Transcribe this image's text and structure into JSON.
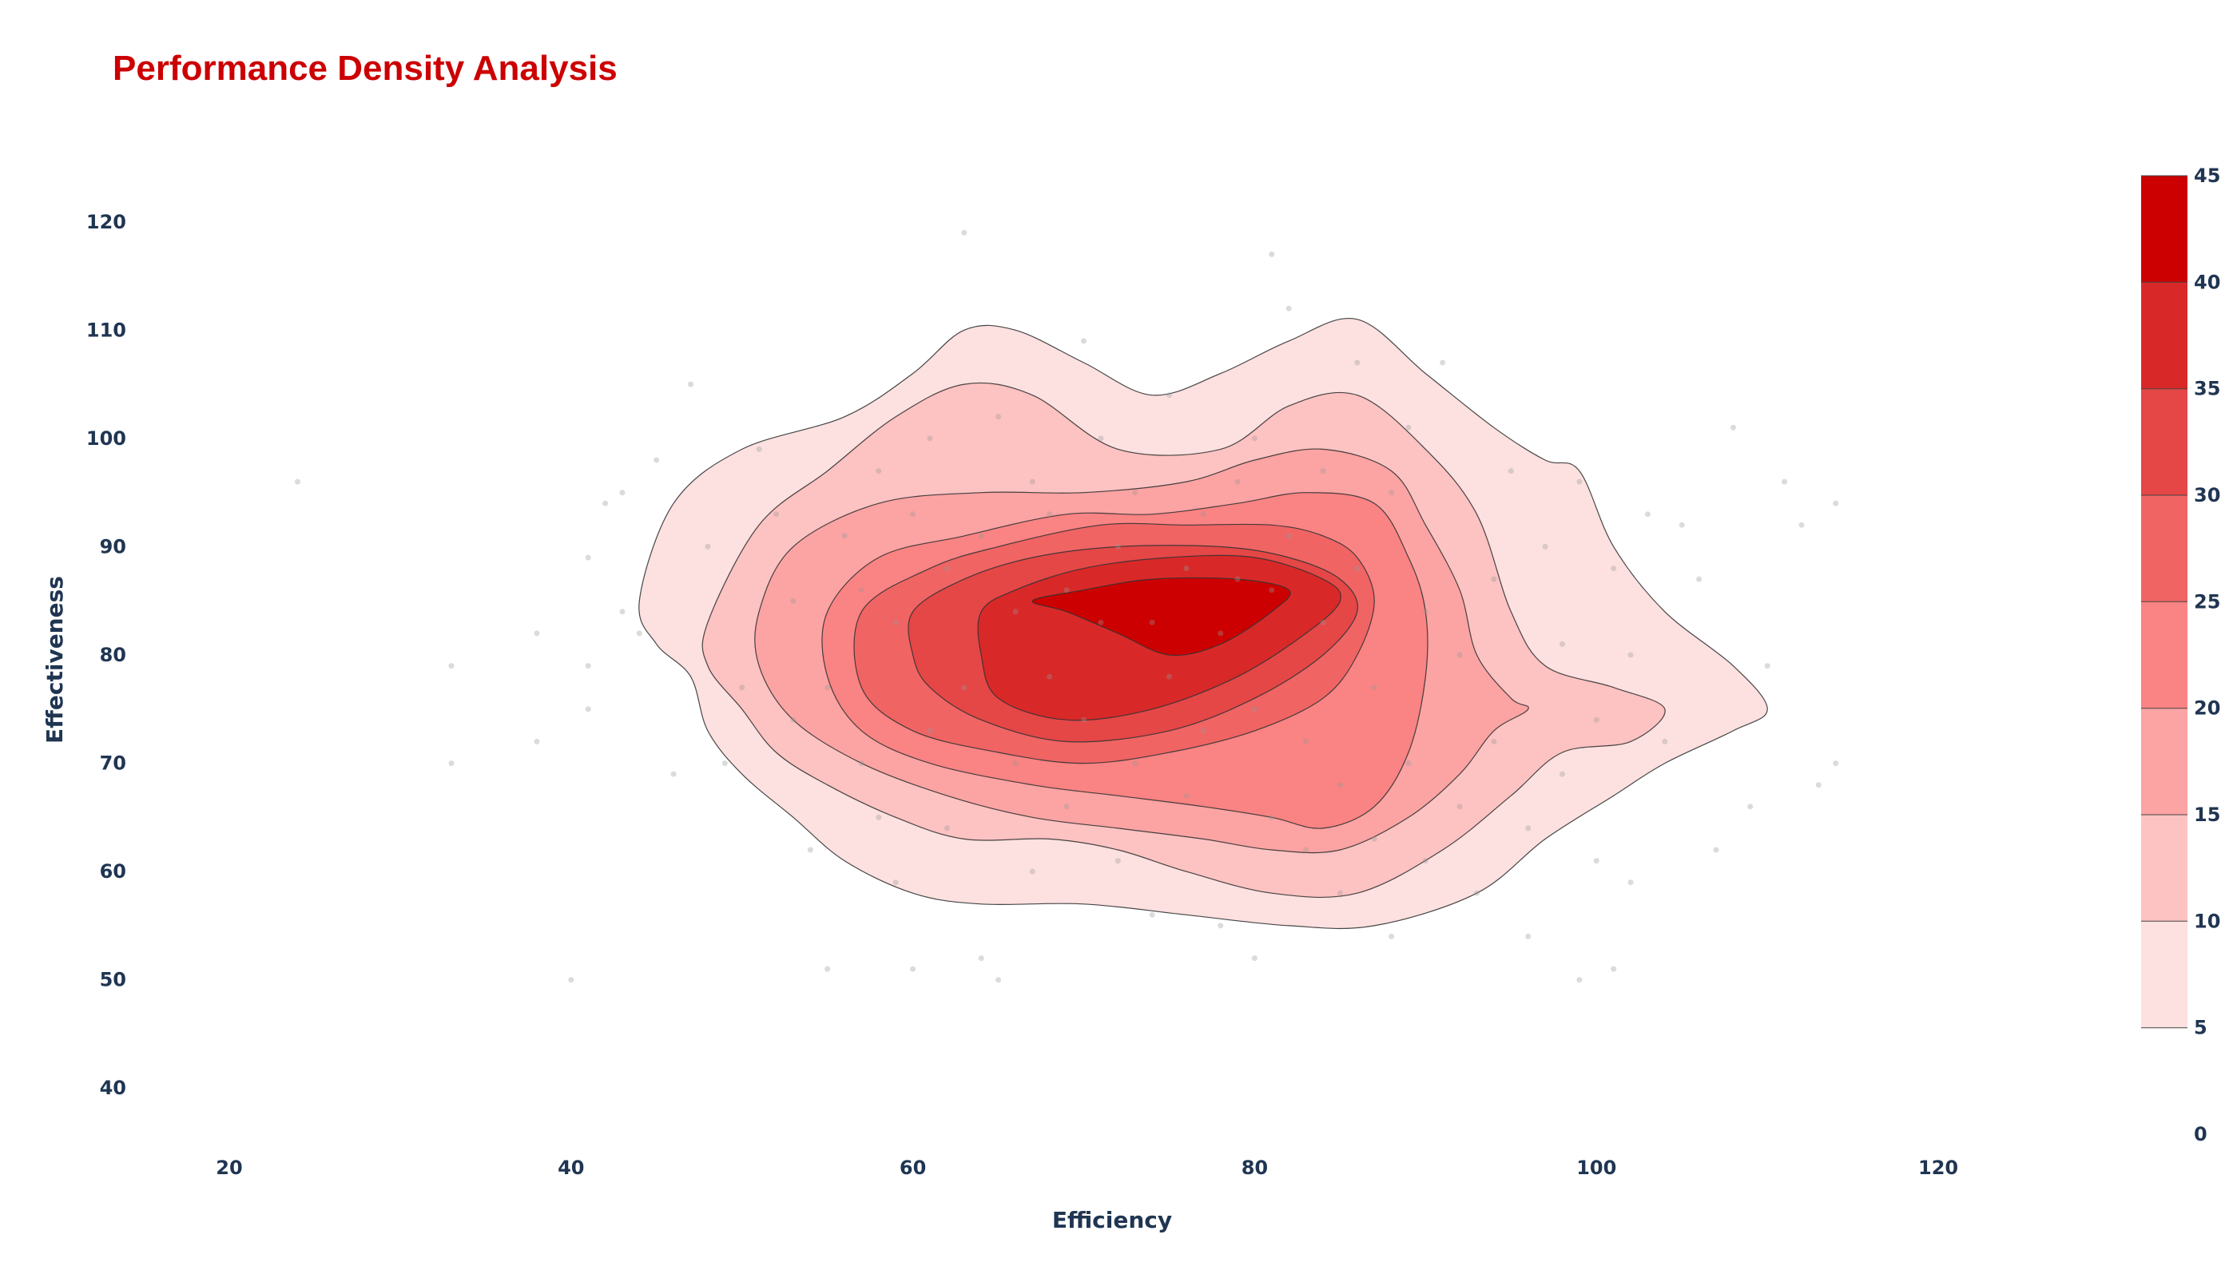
{
  "chart_data": {
    "type": "contour",
    "title": "Performance Density Analysis",
    "xlabel": "Efficiency",
    "ylabel": "Effectiveness",
    "xlim": [
      15,
      130
    ],
    "ylim": [
      35,
      125
    ],
    "x_ticks": [
      20,
      40,
      60,
      80,
      100,
      120
    ],
    "y_ticks": [
      40,
      50,
      60,
      70,
      80,
      90,
      100,
      110,
      120
    ],
    "grid": false,
    "colorscale": {
      "ticks": [
        0,
        5,
        10,
        15,
        20,
        25,
        30,
        35,
        40,
        45
      ],
      "range": [
        0,
        45
      ],
      "colors": [
        "#ffffff",
        "#fde0e0",
        "#fdc2c2",
        "#fca3a3",
        "#fa8383",
        "#f06464",
        "#e54646",
        "#d92828",
        "#cc0000"
      ]
    },
    "contour_levels": [
      {
        "level": 5,
        "points": [
          [
            44,
            85
          ],
          [
            46,
            94
          ],
          [
            50,
            99
          ],
          [
            56,
            102
          ],
          [
            60,
            106
          ],
          [
            63,
            110
          ],
          [
            66,
            110
          ],
          [
            70,
            107
          ],
          [
            74,
            104
          ],
          [
            78,
            106
          ],
          [
            82,
            109
          ],
          [
            86,
            111
          ],
          [
            90,
            106
          ],
          [
            94,
            101
          ],
          [
            97,
            98
          ],
          [
            99,
            97
          ],
          [
            101,
            90
          ],
          [
            104,
            84
          ],
          [
            108,
            79
          ],
          [
            110,
            75
          ],
          [
            108,
            73
          ],
          [
            104,
            70
          ],
          [
            101,
            67
          ],
          [
            97,
            63
          ],
          [
            93,
            58
          ],
          [
            87,
            55
          ],
          [
            82,
            55
          ],
          [
            76,
            56
          ],
          [
            70,
            57
          ],
          [
            64,
            57
          ],
          [
            60,
            58
          ],
          [
            56,
            61
          ],
          [
            53,
            65
          ],
          [
            50,
            69
          ],
          [
            48,
            73
          ],
          [
            47,
            78
          ],
          [
            45,
            81
          ]
        ]
      },
      {
        "level": 10,
        "points": [
          [
            48,
            83
          ],
          [
            51,
            92
          ],
          [
            55,
            97
          ],
          [
            59,
            102
          ],
          [
            63,
            105
          ],
          [
            67,
            104
          ],
          [
            72,
            99
          ],
          [
            78,
            99
          ],
          [
            82,
            103
          ],
          [
            86,
            104
          ],
          [
            90,
            99
          ],
          [
            93,
            93
          ],
          [
            95,
            84
          ],
          [
            97,
            79
          ],
          [
            101,
            77
          ],
          [
            104,
            75
          ],
          [
            102,
            72
          ],
          [
            98,
            71
          ],
          [
            95,
            67
          ],
          [
            91,
            62
          ],
          [
            86,
            58
          ],
          [
            81,
            58
          ],
          [
            76,
            60
          ],
          [
            72,
            62
          ],
          [
            68,
            63
          ],
          [
            63,
            63
          ],
          [
            59,
            65
          ],
          [
            55,
            68
          ],
          [
            52,
            71
          ],
          [
            50,
            75
          ],
          [
            48,
            79
          ]
        ]
      },
      {
        "level": 15,
        "points": [
          [
            51,
            84
          ],
          [
            53,
            90
          ],
          [
            58,
            94
          ],
          [
            64,
            95
          ],
          [
            70,
            95
          ],
          [
            76,
            96
          ],
          [
            80,
            98
          ],
          [
            84,
            99
          ],
          [
            88,
            97
          ],
          [
            90,
            92
          ],
          [
            92,
            86
          ],
          [
            93,
            80
          ],
          [
            95,
            76
          ],
          [
            96,
            75
          ],
          [
            94,
            73
          ],
          [
            92,
            69
          ],
          [
            89,
            65
          ],
          [
            85,
            62
          ],
          [
            81,
            62
          ],
          [
            77,
            63
          ],
          [
            72,
            64
          ],
          [
            67,
            65
          ],
          [
            62,
            67
          ],
          [
            57,
            70
          ],
          [
            53,
            74
          ],
          [
            51,
            79
          ]
        ]
      },
      {
        "level": 20,
        "points": [
          [
            55,
            84
          ],
          [
            58,
            89
          ],
          [
            63,
            91
          ],
          [
            69,
            93
          ],
          [
            74,
            93
          ],
          [
            79,
            94
          ],
          [
            83,
            95
          ],
          [
            87,
            94
          ],
          [
            89,
            89
          ],
          [
            90,
            84
          ],
          [
            90,
            78
          ],
          [
            89,
            71
          ],
          [
            87,
            66
          ],
          [
            84,
            64
          ],
          [
            81,
            65
          ],
          [
            77,
            66
          ],
          [
            72,
            67
          ],
          [
            67,
            68
          ],
          [
            61,
            70
          ],
          [
            57,
            73
          ],
          [
            55,
            78
          ]
        ]
      },
      {
        "level": 25,
        "points": [
          [
            57,
            84
          ],
          [
            61,
            88
          ],
          [
            65,
            90
          ],
          [
            71,
            92
          ],
          [
            76,
            92
          ],
          [
            81,
            92
          ],
          [
            84,
            91
          ],
          [
            86,
            89
          ],
          [
            87,
            85
          ],
          [
            86,
            80
          ],
          [
            84,
            76
          ],
          [
            80,
            73
          ],
          [
            75,
            71
          ],
          [
            70,
            70
          ],
          [
            65,
            71
          ],
          [
            60,
            73
          ],
          [
            57,
            77
          ]
        ]
      },
      {
        "level": 30,
        "points": [
          [
            60,
            84
          ],
          [
            63,
            87
          ],
          [
            67,
            89
          ],
          [
            72,
            90
          ],
          [
            78,
            90
          ],
          [
            82,
            89
          ],
          [
            85,
            87
          ],
          [
            86,
            84
          ],
          [
            84,
            80
          ],
          [
            80,
            76
          ],
          [
            75,
            73
          ],
          [
            69,
            72
          ],
          [
            64,
            74
          ],
          [
            61,
            77
          ],
          [
            60,
            80
          ]
        ]
      },
      {
        "level": 35,
        "points": [
          [
            64,
            84
          ],
          [
            66,
            86
          ],
          [
            70,
            88
          ],
          [
            75,
            89
          ],
          [
            80,
            89
          ],
          [
            84,
            87
          ],
          [
            85,
            85
          ],
          [
            83,
            82
          ],
          [
            79,
            78
          ],
          [
            74,
            75
          ],
          [
            69,
            74
          ],
          [
            65,
            76
          ],
          [
            64,
            80
          ]
        ]
      },
      {
        "level": 40,
        "points": [
          [
            67,
            85
          ],
          [
            70,
            86
          ],
          [
            74,
            87
          ],
          [
            79,
            87
          ],
          [
            82,
            86
          ],
          [
            81,
            84
          ],
          [
            78,
            81
          ],
          [
            75,
            80
          ],
          [
            72,
            82
          ],
          [
            69,
            84
          ]
        ]
      }
    ],
    "scatter": [
      [
        24,
        96
      ],
      [
        33,
        79
      ],
      [
        33,
        70
      ],
      [
        38,
        72
      ],
      [
        38,
        82
      ],
      [
        40,
        50
      ],
      [
        41,
        75
      ],
      [
        41,
        79
      ],
      [
        41,
        89
      ],
      [
        42,
        94
      ],
      [
        43,
        95
      ],
      [
        43,
        84
      ],
      [
        44,
        82
      ],
      [
        45,
        98
      ],
      [
        46,
        69
      ],
      [
        47,
        105
      ],
      [
        48,
        90
      ],
      [
        49,
        70
      ],
      [
        50,
        77
      ],
      [
        51,
        99
      ],
      [
        52,
        93
      ],
      [
        53,
        85
      ],
      [
        53,
        74
      ],
      [
        54,
        62
      ],
      [
        55,
        51
      ],
      [
        55,
        77
      ],
      [
        56,
        91
      ],
      [
        57,
        70
      ],
      [
        57,
        86
      ],
      [
        58,
        97
      ],
      [
        58,
        65
      ],
      [
        59,
        59
      ],
      [
        59,
        83
      ],
      [
        60,
        51
      ],
      [
        60,
        93
      ],
      [
        61,
        73
      ],
      [
        61,
        100
      ],
      [
        62,
        88
      ],
      [
        62,
        64
      ],
      [
        63,
        119
      ],
      [
        63,
        77
      ],
      [
        64,
        52
      ],
      [
        64,
        91
      ],
      [
        65,
        50
      ],
      [
        65,
        102
      ],
      [
        66,
        70
      ],
      [
        66,
        84
      ],
      [
        67,
        60
      ],
      [
        67,
        96
      ],
      [
        68,
        78
      ],
      [
        68,
        93
      ],
      [
        69,
        66
      ],
      [
        69,
        86
      ],
      [
        70,
        109
      ],
      [
        70,
        74
      ],
      [
        71,
        100
      ],
      [
        71,
        83
      ],
      [
        72,
        61
      ],
      [
        72,
        90
      ],
      [
        73,
        70
      ],
      [
        73,
        95
      ],
      [
        74,
        56
      ],
      [
        74,
        83
      ],
      [
        75,
        78
      ],
      [
        75,
        104
      ],
      [
        76,
        67
      ],
      [
        76,
        88
      ],
      [
        77,
        93
      ],
      [
        77,
        73
      ],
      [
        78,
        55
      ],
      [
        78,
        82
      ],
      [
        79,
        87
      ],
      [
        79,
        96
      ],
      [
        80,
        52
      ],
      [
        80,
        75
      ],
      [
        80,
        100
      ],
      [
        81,
        117
      ],
      [
        81,
        65
      ],
      [
        81,
        86
      ],
      [
        82,
        112
      ],
      [
        82,
        91
      ],
      [
        83,
        62
      ],
      [
        83,
        72
      ],
      [
        84,
        83
      ],
      [
        84,
        97
      ],
      [
        85,
        68
      ],
      [
        85,
        58
      ],
      [
        86,
        107
      ],
      [
        86,
        88
      ],
      [
        87,
        77
      ],
      [
        87,
        63
      ],
      [
        88,
        95
      ],
      [
        88,
        54
      ],
      [
        89,
        70
      ],
      [
        89,
        101
      ],
      [
        90,
        84
      ],
      [
        90,
        61
      ],
      [
        91,
        107
      ],
      [
        92,
        80
      ],
      [
        92,
        66
      ],
      [
        93,
        58
      ],
      [
        94,
        87
      ],
      [
        94,
        72
      ],
      [
        95,
        97
      ],
      [
        96,
        54
      ],
      [
        96,
        64
      ],
      [
        97,
        90
      ],
      [
        98,
        81
      ],
      [
        98,
        69
      ],
      [
        99,
        50
      ],
      [
        99,
        96
      ],
      [
        100,
        61
      ],
      [
        100,
        74
      ],
      [
        101,
        51
      ],
      [
        101,
        88
      ],
      [
        102,
        59
      ],
      [
        102,
        80
      ],
      [
        103,
        93
      ],
      [
        104,
        72
      ],
      [
        105,
        92
      ],
      [
        106,
        87
      ],
      [
        107,
        62
      ],
      [
        108,
        101
      ],
      [
        109,
        66
      ],
      [
        110,
        79
      ],
      [
        111,
        96
      ],
      [
        112,
        92
      ],
      [
        113,
        68
      ],
      [
        114,
        94
      ],
      [
        114,
        70
      ]
    ]
  }
}
